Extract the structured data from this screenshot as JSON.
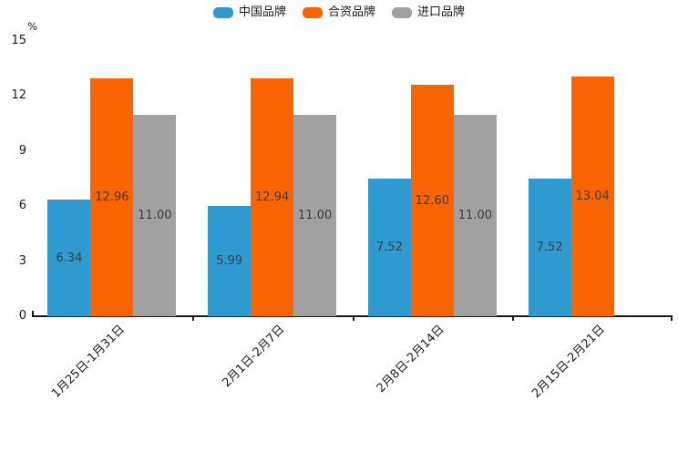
{
  "chart_data": {
    "type": "bar",
    "title": "",
    "unit_label": "%",
    "categories": [
      "1月25日-1月31日",
      "2月1日-2月7日",
      "2月8日-2月14日",
      "2月15日-2月21日"
    ],
    "series": [
      {
        "name": "中国品牌",
        "color": "#2E9AD0",
        "values": [
          6.34,
          5.99,
          7.52,
          7.52
        ]
      },
      {
        "name": "合资品牌",
        "color": "#FA6400",
        "values": [
          12.96,
          12.94,
          12.6,
          13.04
        ]
      },
      {
        "name": "进口品牌",
        "color": "#A1A1A1",
        "values": [
          11.0,
          11.0,
          11.0,
          null
        ]
      }
    ],
    "ylim": [
      0,
      15
    ],
    "yticks": [
      0,
      3,
      6,
      9,
      12,
      15
    ],
    "value_label_decimals": 2,
    "legend_position": "top",
    "grid": false,
    "axis_color": "#1a1a1a",
    "value_label_color": "#3d3d3d"
  }
}
